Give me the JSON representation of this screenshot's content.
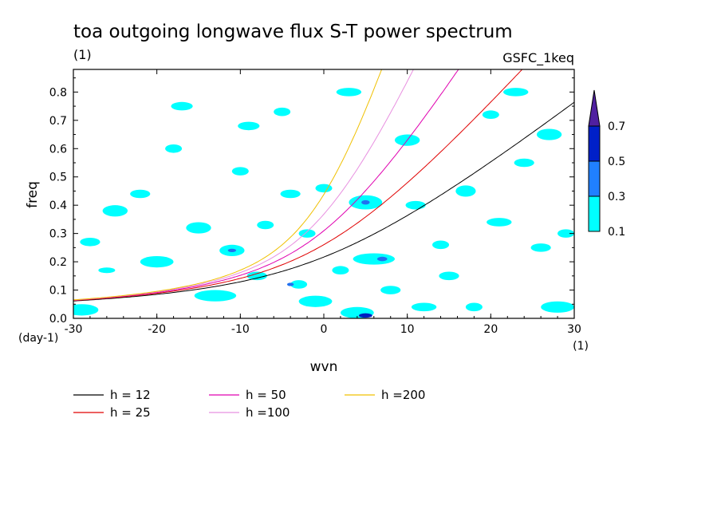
{
  "header": {
    "title": "toa outgoing longwave flux S-T power spectrum",
    "subtitle_left": "(1)",
    "subtitle_right": "GSFC_1keq"
  },
  "chart_data": {
    "type": "contour",
    "xlabel": "wvn",
    "ylabel": "freq",
    "x_unit_label": "(1)",
    "y_unit_label": "(day-1)",
    "xlim": [
      -30,
      30
    ],
    "ylim": [
      0,
      0.88
    ],
    "x_ticks": [
      -30,
      -20,
      -10,
      0,
      10,
      20,
      30
    ],
    "y_ticks": [
      0.0,
      0.1,
      0.2,
      0.3,
      0.4,
      0.5,
      0.6,
      0.7,
      0.8
    ],
    "y_tick_labels": [
      "0.0",
      "0.1",
      "0.2",
      "0.3",
      "0.4",
      "0.5",
      "0.6",
      "0.7",
      "0.8"
    ],
    "colorbar": {
      "levels": [
        "0.1",
        "0.3",
        "0.5",
        "0.7"
      ],
      "colors": [
        "#00ffff",
        "#2080ff",
        "#0020c8",
        "#5020a0"
      ]
    },
    "contour_fill": {
      "level_0.1_color": "#00ffff",
      "level_0.3_color": "#2070f0",
      "level_0.5_color": "#0020c0",
      "spots": [
        [
          -29,
          0.03,
          2.0,
          0.02
        ],
        [
          -25,
          0.38,
          1.5,
          0.02
        ],
        [
          -28,
          0.27,
          1.2,
          0.015
        ],
        [
          -26,
          0.17,
          1.0,
          0.01
        ],
        [
          -22,
          0.44,
          1.2,
          0.015
        ],
        [
          -20,
          0.2,
          2.0,
          0.02
        ],
        [
          -18,
          0.6,
          1.0,
          0.015
        ],
        [
          -17,
          0.75,
          1.3,
          0.015
        ],
        [
          -15,
          0.32,
          1.5,
          0.02
        ],
        [
          -13,
          0.08,
          2.5,
          0.02
        ],
        [
          -11,
          0.24,
          1.5,
          0.02
        ],
        [
          -10,
          0.52,
          1.0,
          0.015
        ],
        [
          -9,
          0.68,
          1.3,
          0.015
        ],
        [
          -8,
          0.15,
          1.2,
          0.015
        ],
        [
          -7,
          0.33,
          1.0,
          0.015
        ],
        [
          -5,
          0.73,
          1.0,
          0.015
        ],
        [
          -4,
          0.44,
          1.2,
          0.015
        ],
        [
          -3,
          0.12,
          1.0,
          0.015
        ],
        [
          -2,
          0.3,
          1.0,
          0.015
        ],
        [
          -1,
          0.06,
          2.0,
          0.02
        ],
        [
          0,
          0.46,
          1.0,
          0.015
        ],
        [
          2,
          0.17,
          1.0,
          0.015
        ],
        [
          3,
          0.8,
          1.5,
          0.015
        ],
        [
          4,
          0.02,
          2.0,
          0.02
        ],
        [
          5,
          0.41,
          2.0,
          0.025
        ],
        [
          6,
          0.21,
          2.5,
          0.02
        ],
        [
          8,
          0.1,
          1.2,
          0.015
        ],
        [
          10,
          0.63,
          1.5,
          0.02
        ],
        [
          11,
          0.4,
          1.2,
          0.015
        ],
        [
          12,
          0.04,
          1.5,
          0.015
        ],
        [
          14,
          0.26,
          1.0,
          0.015
        ],
        [
          15,
          0.15,
          1.2,
          0.015
        ],
        [
          17,
          0.45,
          1.2,
          0.02
        ],
        [
          18,
          0.04,
          1.0,
          0.015
        ],
        [
          20,
          0.72,
          1.0,
          0.015
        ],
        [
          21,
          0.34,
          1.5,
          0.015
        ],
        [
          23,
          0.8,
          1.5,
          0.015
        ],
        [
          24,
          0.55,
          1.2,
          0.015
        ],
        [
          26,
          0.25,
          1.2,
          0.015
        ],
        [
          27,
          0.65,
          1.5,
          0.02
        ],
        [
          28,
          0.04,
          2.0,
          0.02
        ],
        [
          29,
          0.3,
          1.0,
          0.015
        ]
      ],
      "strong_spots": [
        [
          5,
          0.01,
          0.8,
          0.008,
          "#0020c0"
        ],
        [
          5,
          0.41,
          0.5,
          0.008,
          "#2070f0"
        ],
        [
          7,
          0.21,
          0.6,
          0.008,
          "#2070f0"
        ],
        [
          -11,
          0.24,
          0.5,
          0.006,
          "#2070f0"
        ],
        [
          -4,
          0.12,
          0.4,
          0.006,
          "#2070f0"
        ]
      ]
    },
    "series": [
      {
        "name": "h = 12",
        "h": 12,
        "color": "#000000"
      },
      {
        "name": "h = 25",
        "h": 25,
        "color": "#e00000"
      },
      {
        "name": "h = 50",
        "h": 50,
        "color": "#e000b0"
      },
      {
        "name": "h =100",
        "h": 100,
        "color": "#e890e0"
      },
      {
        "name": "h =200",
        "h": 200,
        "color": "#f0c000"
      }
    ]
  }
}
